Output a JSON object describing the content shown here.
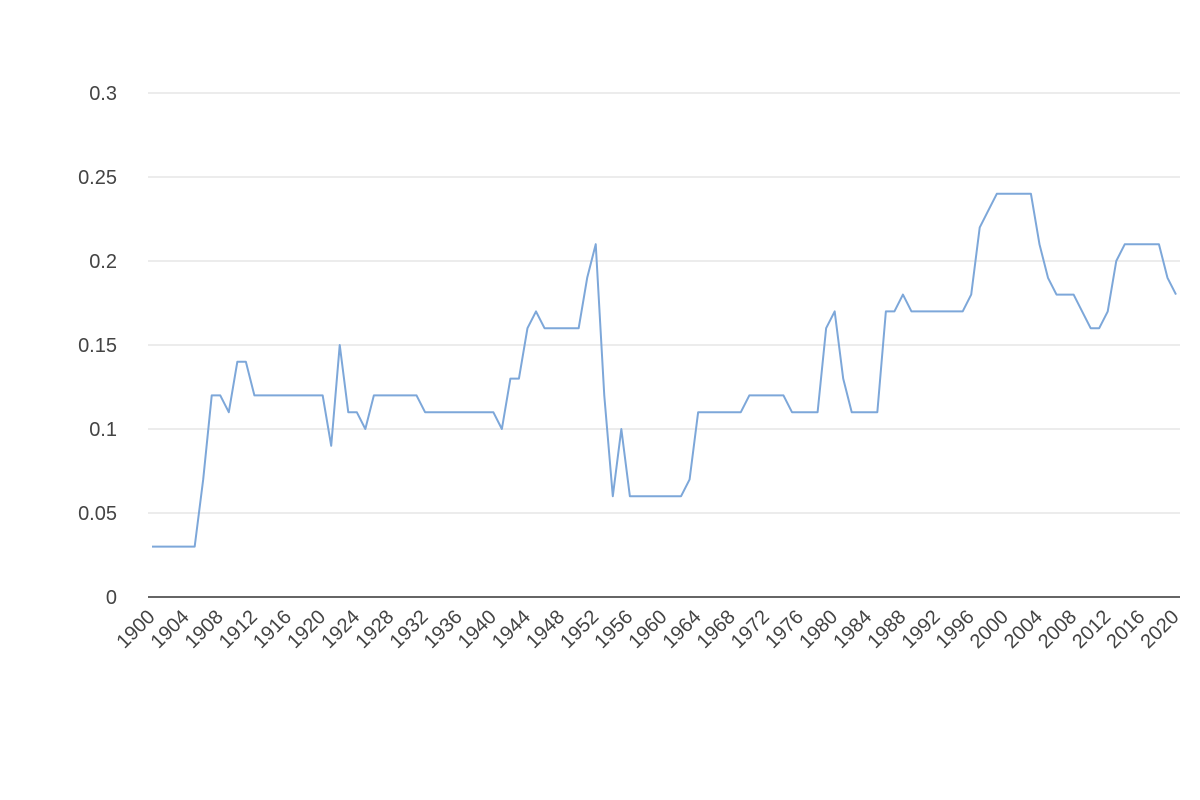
{
  "chart_data": {
    "type": "line",
    "x": [
      1900,
      1901,
      1902,
      1903,
      1904,
      1905,
      1906,
      1907,
      1908,
      1909,
      1910,
      1911,
      1912,
      1913,
      1914,
      1915,
      1916,
      1917,
      1918,
      1919,
      1920,
      1921,
      1922,
      1923,
      1924,
      1925,
      1926,
      1927,
      1928,
      1929,
      1930,
      1931,
      1932,
      1933,
      1934,
      1935,
      1936,
      1937,
      1938,
      1939,
      1940,
      1941,
      1942,
      1943,
      1944,
      1945,
      1946,
      1947,
      1948,
      1949,
      1950,
      1951,
      1952,
      1953,
      1954,
      1955,
      1956,
      1957,
      1958,
      1959,
      1960,
      1961,
      1962,
      1963,
      1964,
      1965,
      1966,
      1967,
      1968,
      1969,
      1970,
      1971,
      1972,
      1973,
      1974,
      1975,
      1976,
      1977,
      1978,
      1979,
      1980,
      1981,
      1982,
      1983,
      1984,
      1985,
      1986,
      1987,
      1988,
      1989,
      1990,
      1991,
      1992,
      1993,
      1994,
      1995,
      1996,
      1997,
      1998,
      1999,
      2000,
      2001,
      2002,
      2003,
      2004,
      2005,
      2006,
      2007,
      2008,
      2009,
      2010,
      2011,
      2012,
      2013,
      2014,
      2015,
      2016,
      2017,
      2018,
      2019,
      2020
    ],
    "values": [
      0.03,
      0.03,
      0.03,
      0.03,
      0.03,
      0.03,
      0.07,
      0.12,
      0.12,
      0.11,
      0.14,
      0.14,
      0.12,
      0.12,
      0.12,
      0.12,
      0.12,
      0.12,
      0.12,
      0.12,
      0.12,
      0.09,
      0.15,
      0.11,
      0.11,
      0.1,
      0.12,
      0.12,
      0.12,
      0.12,
      0.12,
      0.12,
      0.11,
      0.11,
      0.11,
      0.11,
      0.11,
      0.11,
      0.11,
      0.11,
      0.11,
      0.1,
      0.13,
      0.13,
      0.16,
      0.17,
      0.16,
      0.16,
      0.16,
      0.16,
      0.16,
      0.19,
      0.21,
      0.12,
      0.06,
      0.1,
      0.06,
      0.06,
      0.06,
      0.06,
      0.06,
      0.06,
      0.06,
      0.07,
      0.11,
      0.11,
      0.11,
      0.11,
      0.11,
      0.11,
      0.12,
      0.12,
      0.12,
      0.12,
      0.12,
      0.11,
      0.11,
      0.11,
      0.11,
      0.16,
      0.17,
      0.13,
      0.11,
      0.11,
      0.11,
      0.11,
      0.17,
      0.17,
      0.18,
      0.17,
      0.17,
      0.17,
      0.17,
      0.17,
      0.17,
      0.17,
      0.18,
      0.22,
      0.23,
      0.24,
      0.24,
      0.24,
      0.24,
      0.24,
      0.21,
      0.19,
      0.18,
      0.18,
      0.18,
      0.17,
      0.16,
      0.16,
      0.17,
      0.2,
      0.21,
      0.21,
      0.21,
      0.21,
      0.21,
      0.19,
      0.18
    ],
    "color": "#7da7d9",
    "xlim": [
      1900,
      2020
    ],
    "xticks": [
      1900,
      1904,
      1908,
      1912,
      1916,
      1920,
      1924,
      1928,
      1932,
      1936,
      1940,
      1944,
      1948,
      1952,
      1956,
      1960,
      1964,
      1968,
      1972,
      1976,
      1980,
      1984,
      1988,
      1992,
      1996,
      2000,
      2004,
      2008,
      2012,
      2016,
      2020
    ],
    "ylim": [
      0,
      0.3
    ],
    "yticks": [
      0,
      0.05,
      0.1,
      0.15,
      0.2,
      0.25,
      0.3
    ],
    "grid": true
  }
}
